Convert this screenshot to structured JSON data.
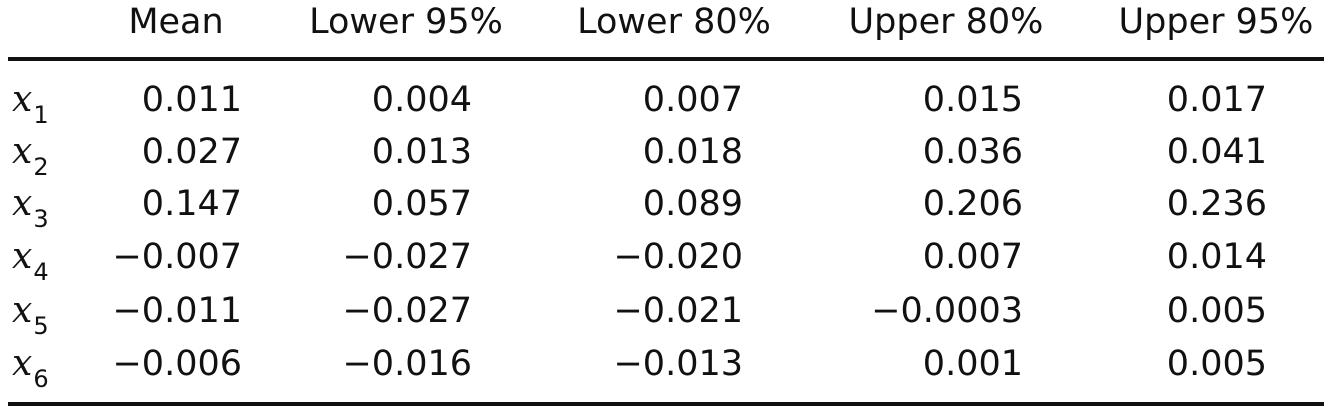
{
  "table": {
    "columns": [
      "Mean",
      "Lower 95%",
      "Lower 80%",
      "Upper 80%",
      "Upper 95%"
    ],
    "rows": [
      {
        "var": "x",
        "sub": "1",
        "values": [
          "0.011",
          "0.004",
          "0.007",
          "0.015",
          "0.017"
        ]
      },
      {
        "var": "x",
        "sub": "2",
        "values": [
          "0.027",
          "0.013",
          "0.018",
          "0.036",
          "0.041"
        ]
      },
      {
        "var": "x",
        "sub": "3",
        "values": [
          "0.147",
          "0.057",
          "0.089",
          "0.206",
          "0.236"
        ]
      },
      {
        "var": "x",
        "sub": "4",
        "values": [
          "−0.007",
          "−0.027",
          "−0.020",
          "0.007",
          "0.014"
        ]
      },
      {
        "var": "x",
        "sub": "5",
        "values": [
          "−0.011",
          "−0.027",
          "−0.021",
          "−0.0003",
          "0.005"
        ]
      },
      {
        "var": "x",
        "sub": "6",
        "values": [
          "−0.006",
          "−0.016",
          "−0.013",
          "0.001",
          "0.005"
        ]
      }
    ]
  }
}
